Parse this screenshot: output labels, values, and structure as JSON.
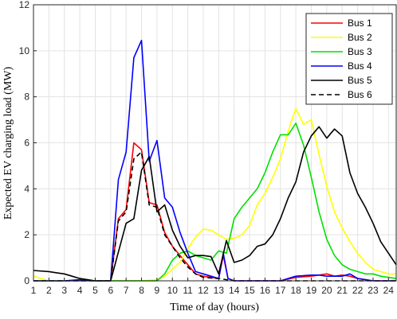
{
  "chart_data": {
    "type": "line",
    "xlabel": "Time of day (hours)",
    "ylabel": "Expected EV charging load  (MW)",
    "xlim": [
      1,
      24.5
    ],
    "ylim": [
      0,
      12
    ],
    "xticks": [
      "1",
      "2",
      "3",
      "4",
      "5",
      "6",
      "7",
      "8",
      "9",
      "10",
      "11",
      "12",
      "13",
      "14",
      "15",
      "16",
      "17",
      "18",
      "19",
      "20",
      "21",
      "22",
      "23",
      "24"
    ],
    "yticks": [
      "0",
      "2",
      "4",
      "6",
      "8",
      "10",
      "12"
    ],
    "grid": true,
    "legend_position": "top-right",
    "series": [
      {
        "name": "Bus 1",
        "color": "#ff0000",
        "dash": false,
        "points": [
          [
            1,
            0
          ],
          [
            1.5,
            0
          ],
          [
            2,
            0
          ],
          [
            3,
            0
          ],
          [
            4,
            0
          ],
          [
            5,
            0
          ],
          [
            6,
            0
          ],
          [
            6.5,
            2.7
          ],
          [
            7,
            3.1
          ],
          [
            7.5,
            6.0
          ],
          [
            8,
            5.7
          ],
          [
            8.5,
            3.4
          ],
          [
            9,
            3.3
          ],
          [
            9.5,
            2.1
          ],
          [
            10,
            1.5
          ],
          [
            10.5,
            1.1
          ],
          [
            11,
            0.7
          ],
          [
            11.5,
            0.3
          ],
          [
            12,
            0.2
          ],
          [
            12.5,
            0.15
          ],
          [
            13,
            0.1
          ],
          [
            13.3,
            1.1
          ],
          [
            13.6,
            0.1
          ],
          [
            14,
            0
          ],
          [
            15,
            0
          ],
          [
            16,
            0
          ],
          [
            17,
            0
          ],
          [
            18,
            0.15
          ],
          [
            19,
            0.2
          ],
          [
            20,
            0.3
          ],
          [
            20.5,
            0.2
          ],
          [
            21,
            0.25
          ],
          [
            21.5,
            0.2
          ],
          [
            22,
            0.1
          ],
          [
            23,
            0
          ],
          [
            24.5,
            0
          ]
        ]
      },
      {
        "name": "Bus 2",
        "color": "#ffff00",
        "dash": false,
        "points": [
          [
            1,
            0.2
          ],
          [
            1.5,
            0.1
          ],
          [
            2,
            0
          ],
          [
            3,
            0
          ],
          [
            4,
            0
          ],
          [
            5,
            0
          ],
          [
            6,
            0
          ],
          [
            7,
            0
          ],
          [
            8,
            0
          ],
          [
            9,
            0.05
          ],
          [
            9.5,
            0.2
          ],
          [
            10,
            0.5
          ],
          [
            10.5,
            0.8
          ],
          [
            11,
            1.4
          ],
          [
            11.5,
            1.9
          ],
          [
            12,
            2.25
          ],
          [
            12.5,
            2.2
          ],
          [
            13,
            2.0
          ],
          [
            13.5,
            1.8
          ],
          [
            14,
            1.85
          ],
          [
            14.5,
            2.0
          ],
          [
            15,
            2.4
          ],
          [
            15.5,
            3.3
          ],
          [
            16,
            3.8
          ],
          [
            16.5,
            4.5
          ],
          [
            17,
            5.3
          ],
          [
            17.5,
            6.5
          ],
          [
            18,
            7.5
          ],
          [
            18.5,
            6.8
          ],
          [
            19,
            7.0
          ],
          [
            19.5,
            5.5
          ],
          [
            20,
            4.1
          ],
          [
            20.5,
            3.0
          ],
          [
            21,
            2.3
          ],
          [
            21.5,
            1.7
          ],
          [
            22,
            1.2
          ],
          [
            22.5,
            0.8
          ],
          [
            23,
            0.5
          ],
          [
            23.5,
            0.4
          ],
          [
            24,
            0.3
          ],
          [
            24.5,
            0.3
          ]
        ]
      },
      {
        "name": "Bus 3",
        "color": "#00e000",
        "dash": false,
        "points": [
          [
            1,
            0
          ],
          [
            2,
            0
          ],
          [
            3,
            0
          ],
          [
            4,
            0
          ],
          [
            5,
            0
          ],
          [
            6,
            0
          ],
          [
            7,
            0
          ],
          [
            8,
            0
          ],
          [
            9,
            0
          ],
          [
            9.5,
            0.3
          ],
          [
            10,
            0.9
          ],
          [
            10.5,
            1.2
          ],
          [
            11,
            1.3
          ],
          [
            11.5,
            1.1
          ],
          [
            12,
            1.0
          ],
          [
            12.5,
            0.9
          ],
          [
            13,
            1.3
          ],
          [
            13.5,
            1.2
          ],
          [
            14,
            2.7
          ],
          [
            14.5,
            3.2
          ],
          [
            15,
            3.6
          ],
          [
            15.5,
            4.0
          ],
          [
            16,
            4.7
          ],
          [
            16.5,
            5.6
          ],
          [
            17,
            6.35
          ],
          [
            17.5,
            6.35
          ],
          [
            18,
            6.85
          ],
          [
            18.5,
            5.9
          ],
          [
            19,
            4.5
          ],
          [
            19.5,
            3.0
          ],
          [
            20,
            1.8
          ],
          [
            20.5,
            1.1
          ],
          [
            21,
            0.7
          ],
          [
            21.5,
            0.5
          ],
          [
            22,
            0.4
          ],
          [
            22.5,
            0.3
          ],
          [
            23,
            0.3
          ],
          [
            23.5,
            0.2
          ],
          [
            24,
            0.15
          ],
          [
            24.5,
            0.1
          ]
        ]
      },
      {
        "name": "Bus 4",
        "color": "#0000ff",
        "dash": false,
        "points": [
          [
            1,
            0
          ],
          [
            2,
            0
          ],
          [
            3,
            0
          ],
          [
            4,
            0.05
          ],
          [
            5,
            0
          ],
          [
            6,
            0
          ],
          [
            6.5,
            4.4
          ],
          [
            7,
            5.6
          ],
          [
            7.5,
            9.7
          ],
          [
            8,
            10.45
          ],
          [
            8.5,
            5.2
          ],
          [
            9,
            6.1
          ],
          [
            9.5,
            3.6
          ],
          [
            10,
            3.2
          ],
          [
            10.5,
            2.1
          ],
          [
            11,
            1.2
          ],
          [
            11.5,
            0.4
          ],
          [
            12,
            0.3
          ],
          [
            12.5,
            0.2
          ],
          [
            13,
            0.1
          ],
          [
            13.3,
            1.2
          ],
          [
            13.6,
            0.1
          ],
          [
            14,
            0
          ],
          [
            15,
            0
          ],
          [
            16,
            0
          ],
          [
            17,
            0
          ],
          [
            18,
            0.2
          ],
          [
            19,
            0.25
          ],
          [
            19.5,
            0.25
          ],
          [
            20,
            0.2
          ],
          [
            21,
            0.2
          ],
          [
            21.5,
            0.3
          ],
          [
            22,
            0.1
          ],
          [
            23,
            0
          ],
          [
            24.5,
            0
          ]
        ]
      },
      {
        "name": "Bus 5",
        "color": "#000000",
        "dash": false,
        "points": [
          [
            1,
            0.45
          ],
          [
            2,
            0.4
          ],
          [
            2.5,
            0.35
          ],
          [
            3,
            0.3
          ],
          [
            3.5,
            0.2
          ],
          [
            4,
            0.1
          ],
          [
            5,
            0
          ],
          [
            6,
            0
          ],
          [
            7,
            2.5
          ],
          [
            7.5,
            2.7
          ],
          [
            8,
            4.8
          ],
          [
            8.5,
            5.4
          ],
          [
            9,
            3.0
          ],
          [
            9.5,
            3.3
          ],
          [
            10,
            2.2
          ],
          [
            10.5,
            1.5
          ],
          [
            11,
            1.0
          ],
          [
            11.5,
            1.1
          ],
          [
            12,
            1.1
          ],
          [
            12.5,
            1.05
          ],
          [
            13,
            0.3
          ],
          [
            13.5,
            1.75
          ],
          [
            14,
            0.8
          ],
          [
            14.5,
            0.9
          ],
          [
            15,
            1.1
          ],
          [
            15.5,
            1.5
          ],
          [
            16,
            1.6
          ],
          [
            16.5,
            2.0
          ],
          [
            17,
            2.7
          ],
          [
            17.5,
            3.6
          ],
          [
            18,
            4.3
          ],
          [
            18.5,
            5.6
          ],
          [
            19,
            6.3
          ],
          [
            19.5,
            6.7
          ],
          [
            20,
            6.2
          ],
          [
            20.5,
            6.6
          ],
          [
            21,
            6.3
          ],
          [
            21.5,
            4.7
          ],
          [
            22,
            3.8
          ],
          [
            22.5,
            3.2
          ],
          [
            23,
            2.5
          ],
          [
            23.5,
            1.7
          ],
          [
            24,
            1.2
          ],
          [
            24.5,
            0.7
          ]
        ]
      },
      {
        "name": "Bus 6",
        "color": "#000000",
        "dash": true,
        "points": [
          [
            1,
            0
          ],
          [
            2,
            0
          ],
          [
            3,
            0
          ],
          [
            4,
            0
          ],
          [
            5,
            0
          ],
          [
            6,
            0
          ],
          [
            6.5,
            2.6
          ],
          [
            7,
            3.0
          ],
          [
            7.5,
            5.3
          ],
          [
            8,
            5.6
          ],
          [
            8.5,
            3.3
          ],
          [
            9,
            3.2
          ],
          [
            9.5,
            2.0
          ],
          [
            10,
            1.5
          ],
          [
            10.5,
            1.0
          ],
          [
            11,
            0.6
          ],
          [
            11.5,
            0.3
          ],
          [
            12,
            0.15
          ],
          [
            13,
            0.1
          ],
          [
            14,
            0
          ],
          [
            24.5,
            0
          ]
        ]
      }
    ]
  }
}
